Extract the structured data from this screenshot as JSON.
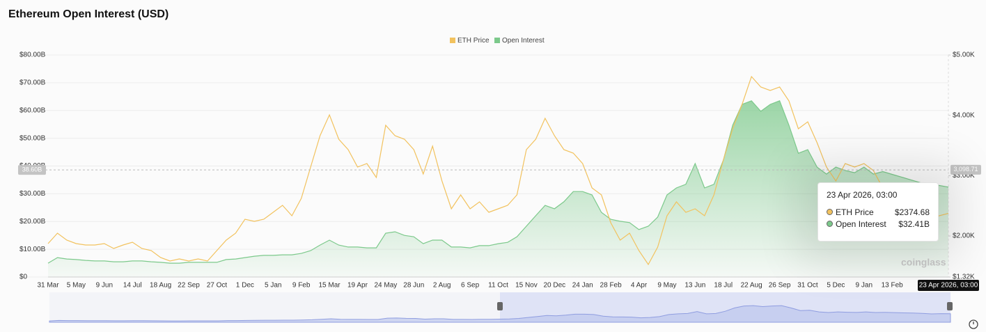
{
  "chart_data": {
    "type": "line",
    "title": "Ethereum Open Interest (USD)",
    "categories": [
      "31 Mar",
      null,
      null,
      "5 May",
      null,
      null,
      "9 Jun",
      null,
      null,
      "14 Jul",
      null,
      null,
      "18 Aug",
      null,
      null,
      "22 Sep",
      null,
      null,
      "27 Oct",
      null,
      null,
      "1 Dec",
      null,
      null,
      "5 Jan",
      null,
      null,
      "9 Feb",
      null,
      null,
      "15 Mar",
      null,
      null,
      "19 Apr",
      null,
      null,
      "24 May",
      null,
      null,
      "28 Jun",
      null,
      null,
      "2 Aug",
      null,
      null,
      "6 Sep",
      null,
      null,
      "11 Oct",
      null,
      null,
      "15 Nov",
      null,
      null,
      "20 Dec",
      null,
      null,
      "24 Jan",
      null,
      null,
      "28 Feb",
      null,
      null,
      "4 Apr",
      null,
      null,
      "9 May",
      null,
      null,
      "13 Jun",
      null,
      null,
      "18 Jul",
      null,
      null,
      "22 Aug",
      null,
      null,
      "26 Sep",
      null,
      null,
      "31 Oct",
      null,
      null,
      "5 Dec",
      null,
      null,
      "9 Jan",
      null,
      null,
      "13 Feb",
      null,
      null,
      null,
      null,
      null,
      null
    ],
    "series": [
      {
        "name": "ETH Price",
        "color": "#f2c25e",
        "axis": "y2",
        "values": [
          1874,
          2047,
          1931,
          1874,
          1851,
          1851,
          1874,
          1793,
          1851,
          1897,
          1793,
          1758,
          1643,
          1585,
          1620,
          1585,
          1620,
          1585,
          1758,
          1931,
          2047,
          2278,
          2243,
          2278,
          2393,
          2508,
          2335,
          2624,
          3143,
          3662,
          4008,
          3604,
          3431,
          3143,
          3200,
          2970,
          3835,
          3662,
          3604,
          3431,
          3027,
          3489,
          2912,
          2451,
          2681,
          2451,
          2566,
          2393,
          2451,
          2508,
          2681,
          3431,
          3604,
          3950,
          3662,
          3431,
          3373,
          3200,
          2797,
          2681,
          2220,
          1931,
          2047,
          1758,
          1528,
          1816,
          2335,
          2566,
          2393,
          2451,
          2335,
          2681,
          3258,
          3777,
          4181,
          4642,
          4469,
          4412,
          4469,
          4239,
          3777,
          3893,
          3546,
          3143,
          2912,
          3200,
          3143,
          3200,
          3085,
          2797,
          1931,
          2047,
          2104,
          2220,
          2220,
          2335,
          2374.68
        ]
      },
      {
        "name": "Open Interest",
        "color": "#7cc98b",
        "values": [
          5.0,
          7.0,
          6.5,
          6.3,
          6.0,
          5.8,
          5.8,
          5.5,
          5.5,
          5.8,
          5.8,
          5.5,
          5.3,
          5.0,
          5.0,
          5.3,
          5.3,
          5.3,
          5.3,
          6.3,
          6.5,
          7.0,
          7.5,
          7.8,
          7.8,
          8.0,
          8.0,
          8.5,
          9.5,
          11.5,
          13.3,
          11.5,
          10.8,
          10.8,
          10.5,
          10.5,
          15.8,
          16.3,
          15.0,
          14.5,
          12.0,
          13.3,
          13.3,
          10.8,
          10.8,
          10.5,
          11.3,
          11.3,
          12.0,
          12.5,
          14.5,
          18.3,
          22.1,
          25.8,
          24.6,
          27.1,
          30.8,
          30.8,
          29.6,
          23.3,
          20.8,
          20.1,
          19.6,
          17.1,
          18.3,
          21.6,
          29.6,
          32.1,
          33.4,
          40.9,
          32.1,
          33.4,
          42.1,
          54.7,
          62.2,
          63.5,
          59.7,
          62.2,
          63.5,
          54.7,
          44.6,
          45.9,
          39.6,
          37.1,
          39.6,
          38.4,
          37.6,
          39.6,
          37.1,
          38,
          37,
          36,
          35,
          34,
          32,
          33,
          32.41
        ]
      }
    ],
    "ylim": [
      0,
      80
    ],
    "yticks": [
      {
        "value": 0,
        "label": "$0"
      },
      {
        "value": 10,
        "label": "$10.00B"
      },
      {
        "value": 20,
        "label": "$20.00B"
      },
      {
        "value": 30,
        "label": "$30.00B"
      },
      {
        "value": 40,
        "label": "$40.00B"
      },
      {
        "value": 50,
        "label": "$50.00B"
      },
      {
        "value": 60,
        "label": "$60.00B"
      },
      {
        "value": 70,
        "label": "$70.00B"
      },
      {
        "value": 80,
        "label": "$80.00B"
      }
    ],
    "y2lim": [
      1320,
      5000
    ],
    "y2ticks": [
      {
        "value": 1320,
        "label": "$1.32K"
      },
      {
        "value": 2000,
        "label": "$2.00K"
      },
      {
        "value": 3000,
        "label": "$3.00K"
      },
      {
        "value": 4000,
        "label": "$4.00K"
      },
      {
        "value": 5000,
        "label": "$5.00K"
      }
    ],
    "grid": true,
    "legend": "top",
    "crosshair": {
      "y": {
        "value": 38.6,
        "label": "38.60B"
      },
      "y2": {
        "value": 3098.71,
        "label": "3,098.71"
      }
    },
    "tooltip": {
      "title": "23 Apr 2026, 03:00",
      "values": [
        {
          "value": 2374.68,
          "label": "$2374.68"
        },
        {
          "value": 32.41,
          "label": "$32.41B"
        }
      ]
    },
    "watermark": "coinglass"
  }
}
